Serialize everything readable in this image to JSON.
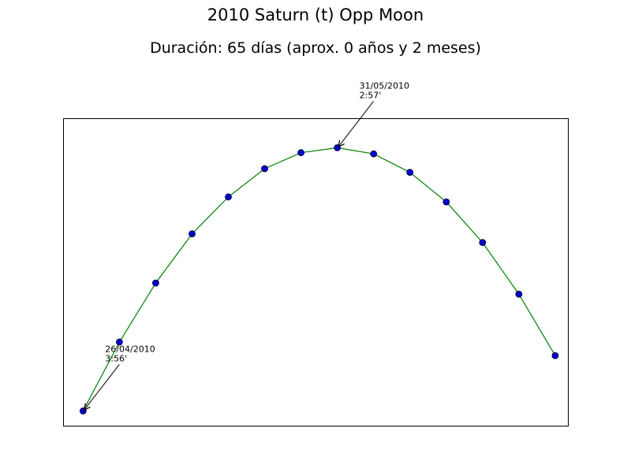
{
  "chart_data": {
    "type": "line",
    "title": "2010 Saturn (t) Opp Moon",
    "subtitle": "Duración: 65 días (aprox. 0 años y 2 meses)",
    "xlabel": "",
    "ylabel": "",
    "xlim": [
      -0.55,
      13.35
    ],
    "ylim": [
      2.8,
      4.05
    ],
    "grid": false,
    "line_color": "#008000",
    "marker_color": "#0000cc",
    "series": [
      {
        "x": [
          0,
          1,
          2,
          3,
          4,
          5,
          6,
          7,
          8,
          9,
          10,
          11,
          12,
          13
        ],
        "values": [
          2.86,
          3.14,
          3.38,
          3.58,
          3.73,
          3.845,
          3.91,
          3.93,
          3.905,
          3.83,
          3.71,
          3.545,
          3.335,
          3.085
        ]
      }
    ],
    "annotations": [
      {
        "point_index": 0,
        "label": "26/04/2010\n3:56'"
      },
      {
        "point_index": 7,
        "label": "31/05/2010\n2:57'"
      }
    ]
  }
}
